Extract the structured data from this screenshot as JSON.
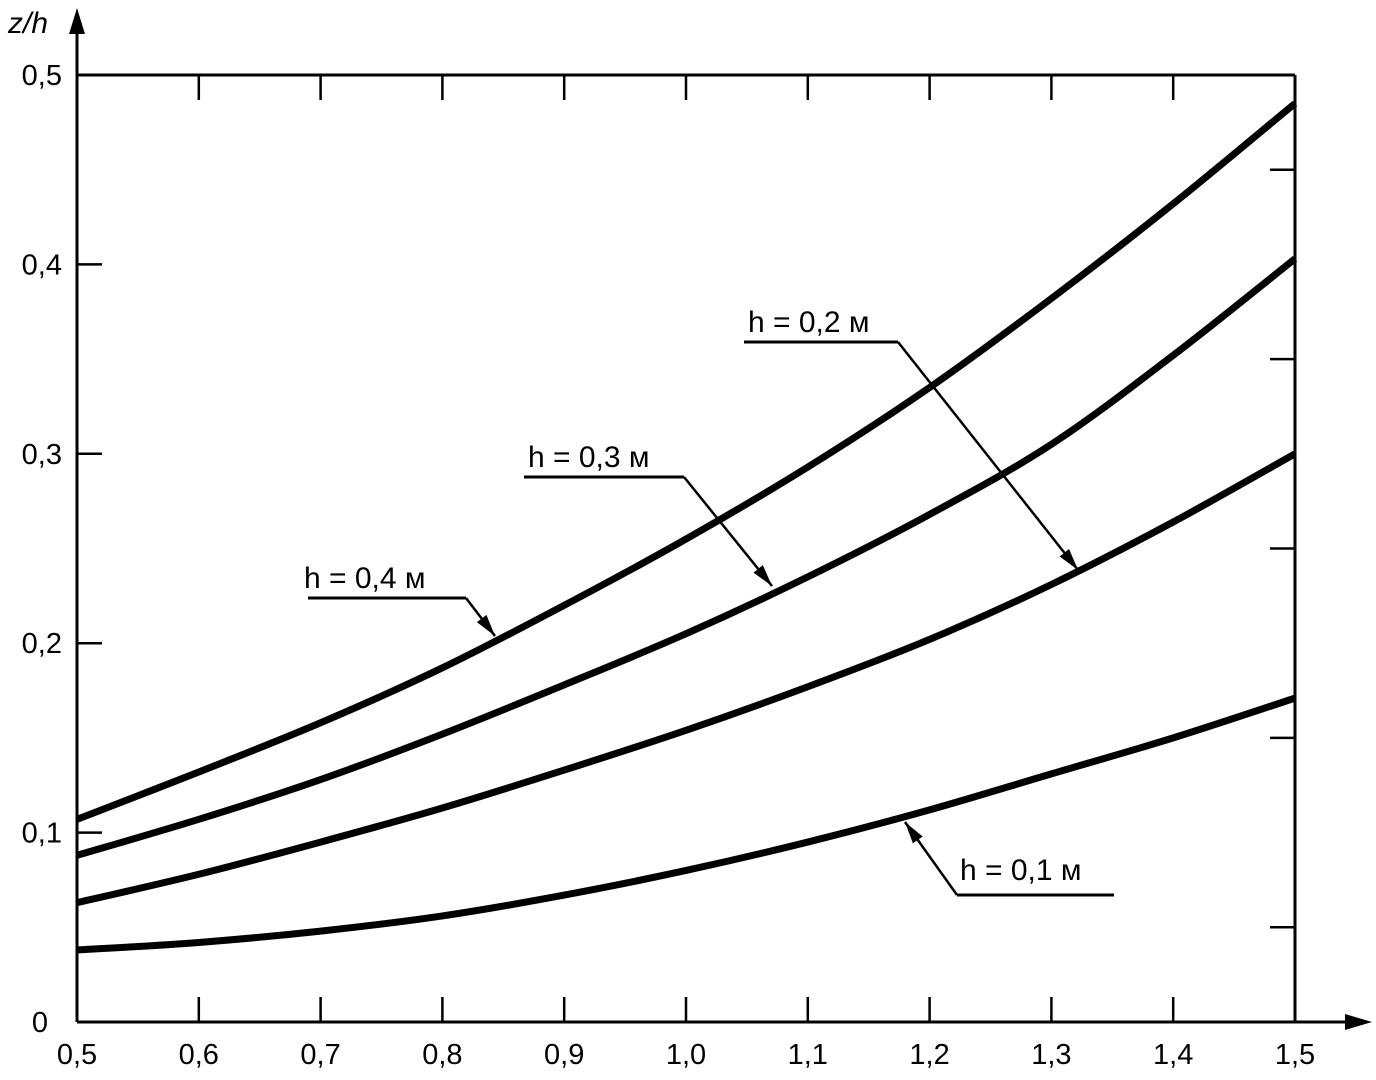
{
  "chart_data": {
    "type": "line",
    "title": "",
    "xlabel": "",
    "ylabel": "z/h",
    "xlim": [
      0.5,
      1.5
    ],
    "ylim": [
      0,
      0.5
    ],
    "grid": false,
    "x": [
      0.5,
      0.6,
      0.7,
      0.8,
      0.9,
      1.0,
      1.1,
      1.2,
      1.3,
      1.4,
      1.5
    ],
    "x_tick_labels": [
      "0,5",
      "0,6",
      "0,7",
      "0,8",
      "0,9",
      "1,0",
      "1,1",
      "1,2",
      "1,3",
      "1,4",
      "1,5"
    ],
    "y_ticks": [
      0,
      0.1,
      0.2,
      0.3,
      0.4,
      0.5
    ],
    "y_tick_labels": [
      "0",
      "0,1",
      "0,2",
      "0,3",
      "0,4",
      "0,5"
    ],
    "series": [
      {
        "name": "h = 0,4 м",
        "values": [
          0.107,
          0.132,
          0.158,
          0.187,
          0.22,
          0.255,
          0.293,
          0.335,
          0.382,
          0.432,
          0.485
        ]
      },
      {
        "name": "h = 0,3 м",
        "values": [
          0.088,
          0.107,
          0.128,
          0.152,
          0.178,
          0.205,
          0.235,
          0.268,
          0.305,
          0.352,
          0.403
        ]
      },
      {
        "name": "h = 0,2 м",
        "values": [
          0.063,
          0.078,
          0.095,
          0.113,
          0.133,
          0.154,
          0.177,
          0.202,
          0.231,
          0.264,
          0.3
        ]
      },
      {
        "name": "h = 0,1 м",
        "values": [
          0.038,
          0.042,
          0.048,
          0.056,
          0.067,
          0.08,
          0.095,
          0.112,
          0.131,
          0.15,
          0.171
        ]
      }
    ],
    "colors": {
      "line": "#000000",
      "background": "#ffffff"
    }
  }
}
